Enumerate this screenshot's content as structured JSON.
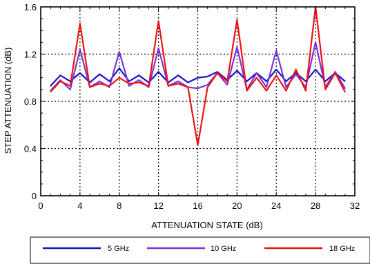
{
  "chart_data": {
    "type": "line",
    "title": "",
    "xlabel": "ATTENUATION STATE (dB)",
    "ylabel": "STEP ATTENUATION (dB)",
    "xlim": [
      0,
      32
    ],
    "ylim": [
      0,
      1.6
    ],
    "xticks": [
      0,
      4,
      8,
      12,
      16,
      20,
      24,
      28,
      32
    ],
    "yticks": [
      0,
      0.4,
      0.8,
      1.2,
      1.6
    ],
    "ytick_labels": [
      "0",
      "0.4",
      "0.8",
      "1.2",
      "1.6"
    ],
    "grid": "dotted, at major ticks",
    "legend_position": "bottom, below axis title",
    "x": [
      1,
      2,
      3,
      4,
      5,
      6,
      7,
      8,
      9,
      10,
      11,
      12,
      13,
      14,
      15,
      16,
      17,
      18,
      19,
      20,
      21,
      22,
      23,
      24,
      25,
      26,
      27,
      28,
      29,
      30,
      31
    ],
    "series": [
      {
        "name": "5 GHz",
        "color": "#1414c8",
        "values": [
          0.93,
          1.02,
          0.97,
          1.04,
          0.96,
          1.03,
          0.97,
          1.08,
          0.97,
          1.02,
          0.96,
          1.05,
          0.96,
          1.02,
          0.96,
          1.0,
          1.01,
          1.05,
          0.98,
          1.06,
          0.97,
          1.04,
          0.97,
          1.07,
          0.97,
          1.04,
          0.97,
          1.07,
          0.97,
          1.04,
          0.97
        ]
      },
      {
        "name": "10 GHz",
        "color": "#7a33dd",
        "values": [
          0.89,
          0.98,
          0.9,
          1.24,
          0.92,
          0.97,
          0.92,
          1.22,
          0.93,
          0.98,
          0.92,
          1.25,
          0.93,
          0.97,
          0.92,
          0.91,
          0.94,
          1.04,
          0.94,
          1.26,
          0.9,
          1.04,
          0.92,
          1.23,
          0.92,
          1.03,
          0.92,
          1.3,
          0.92,
          1.05,
          0.91
        ]
      },
      {
        "name": "18 GHz",
        "color": "#ee1111",
        "values": [
          0.88,
          0.97,
          0.93,
          1.46,
          0.92,
          0.95,
          0.93,
          1.0,
          0.95,
          0.96,
          0.93,
          1.48,
          0.93,
          0.95,
          0.92,
          0.43,
          0.92,
          1.04,
          0.97,
          1.49,
          0.89,
          1.0,
          0.89,
          1.02,
          0.89,
          1.07,
          0.89,
          1.6,
          0.9,
          1.04,
          0.88
        ]
      }
    ]
  }
}
